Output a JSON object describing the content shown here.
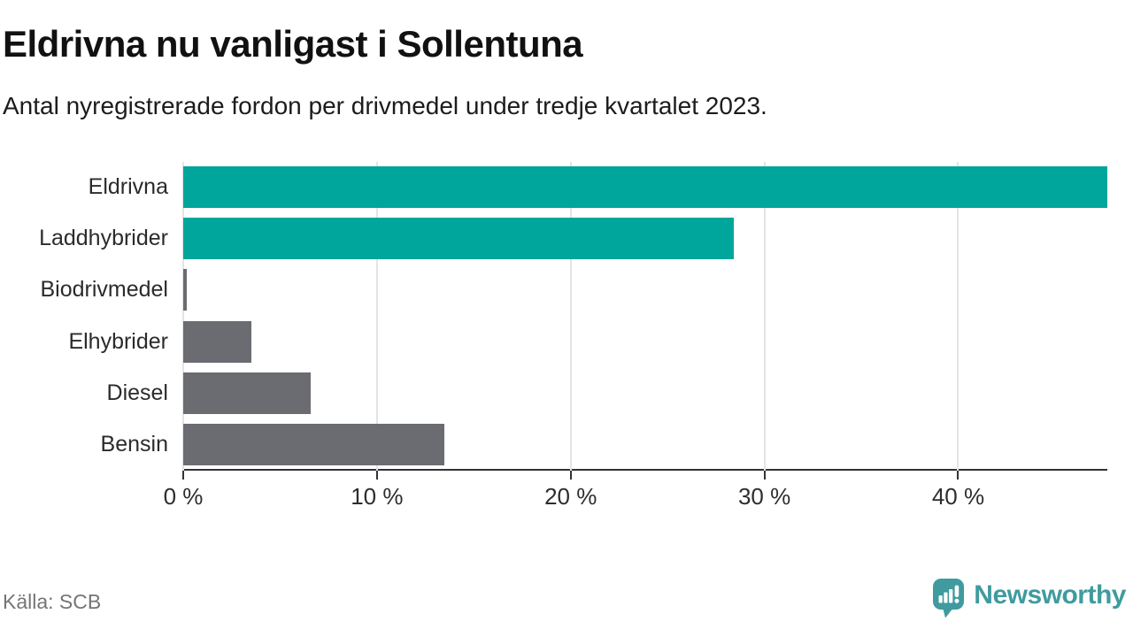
{
  "chart_data": {
    "type": "bar",
    "orientation": "horizontal",
    "title": "Eldrivna nu vanligast i Sollentuna",
    "subtitle": "Antal nyregistrerade fordon per drivmedel under tredje kvartalet 2023.",
    "categories": [
      "Eldrivna",
      "Laddhybrider",
      "Biodrivmedel",
      "Elhybrider",
      "Diesel",
      "Bensin"
    ],
    "values": [
      47.7,
      28.4,
      0.2,
      3.5,
      6.6,
      13.5
    ],
    "unit": "%",
    "bar_colors": [
      "#00a69b",
      "#00a69b",
      "#6b6b72",
      "#6b6b72",
      "#6b6b72",
      "#6b6b72"
    ],
    "xlim": [
      0,
      47.7
    ],
    "x_ticks": [
      {
        "value": 0,
        "label": "0 %"
      },
      {
        "value": 10,
        "label": "10 %"
      },
      {
        "value": 20,
        "label": "20 %"
      },
      {
        "value": 30,
        "label": "30 %"
      },
      {
        "value": 40,
        "label": "40 %"
      }
    ],
    "grid": true,
    "legend": "none"
  },
  "footer": {
    "source": "Källa: SCB",
    "logo_text": "Newsworthy"
  },
  "colors": {
    "accent_teal": "#00a69b",
    "neutral_gray": "#6b6b72",
    "logo_teal": "#3f9b9e",
    "axis_line": "#333333",
    "gridline": "#e4e4e4"
  }
}
